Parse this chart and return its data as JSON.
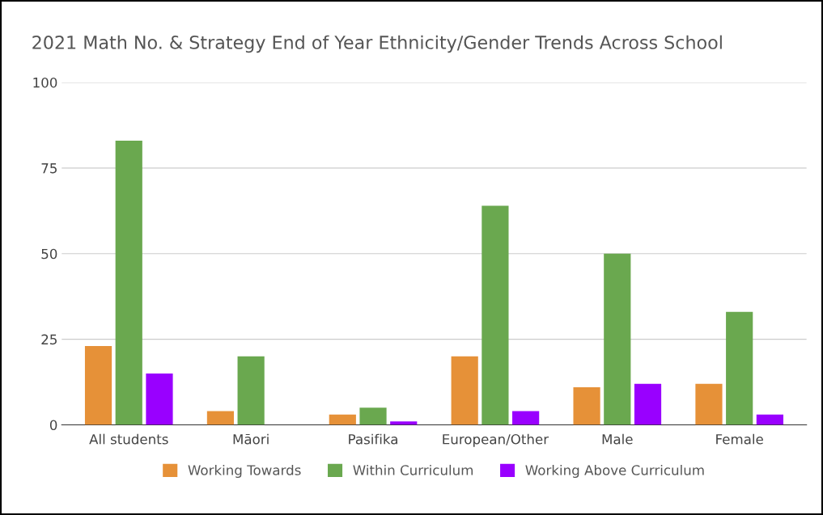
{
  "chart_data": {
    "type": "bar",
    "title": "2021 Math No. & Strategy End of Year Ethnicity/Gender Trends Across School",
    "categories": [
      "All students",
      "Māori",
      "Pasifika",
      "European/Other",
      "Male",
      "Female"
    ],
    "series": [
      {
        "name": "Working Towards",
        "color": "#e69138",
        "values": [
          23,
          4,
          3,
          20,
          11,
          12
        ]
      },
      {
        "name": "Within Curriculum",
        "color": "#6aa84f",
        "values": [
          83,
          20,
          5,
          64,
          50,
          33
        ]
      },
      {
        "name": "Working Above Curriculum",
        "color": "#9900ff",
        "values": [
          15,
          null,
          1,
          4,
          12,
          3
        ]
      }
    ],
    "ylim": [
      0,
      100
    ],
    "yticks": [
      0,
      25,
      50,
      75,
      100
    ],
    "grid": "y",
    "legend": "bottom"
  }
}
